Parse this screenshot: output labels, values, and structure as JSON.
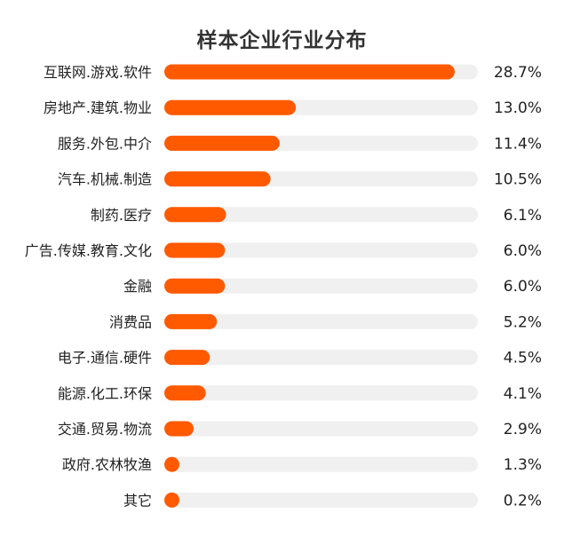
{
  "chart_data": {
    "type": "bar",
    "orientation": "horizontal",
    "title": "样本企业行业分布",
    "categories": [
      "互联网.游戏.软件",
      "房地产.建筑.物业",
      "服务.外包.中介",
      "汽车.机械.制造",
      "制药.医疗",
      "广告.传媒.教育.文化",
      "金融",
      "消费品",
      "电子.通信.硬件",
      "能源.化工.环保",
      "交通.贸易.物流",
      "政府.农林牧渔",
      "其它"
    ],
    "values": [
      28.7,
      13.0,
      11.4,
      10.5,
      6.1,
      6.0,
      6.0,
      5.2,
      4.5,
      4.1,
      2.9,
      1.3,
      0.2
    ],
    "value_labels": [
      "28.7%",
      "13.0%",
      "11.4%",
      "10.5%",
      "6.1%",
      "6.0%",
      "6.0%",
      "5.2%",
      "4.5%",
      "4.1%",
      "2.9%",
      "1.3%",
      "0.2%"
    ],
    "unit": "%",
    "xlim": [
      0,
      30
    ],
    "grid": false,
    "legend": "none",
    "colors": {
      "bar": "#FF5A00",
      "track": "#F0F0F0"
    }
  }
}
